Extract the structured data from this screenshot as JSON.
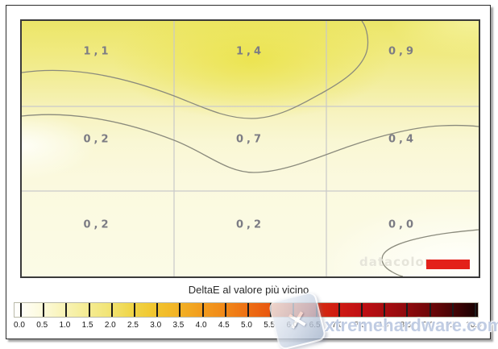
{
  "chart_data": {
    "type": "heatmap",
    "title": "DeltaE al valore più vicino",
    "rows": 3,
    "cols": 3,
    "values": [
      [
        1.1,
        1.4,
        0.9
      ],
      [
        0.2,
        0.7,
        0.4
      ],
      [
        0.2,
        0.2,
        0.0
      ]
    ],
    "cell_labels": [
      [
        "1,1",
        "1,4",
        "0,9"
      ],
      [
        "0,2",
        "0,7",
        "0,4"
      ],
      [
        "0,2",
        "0,2",
        "0,0"
      ]
    ],
    "grid": true,
    "legend_position": "bottom",
    "colorbar": {
      "min": 0.0,
      "max": 10.0,
      "step": 0.5,
      "ticks": [
        "0.0",
        "0.5",
        "1.0",
        "1.5",
        "2.0",
        "2.5",
        "3.0",
        "3.5",
        "4.0",
        "4.5",
        "5.0",
        "5.5",
        "6.0",
        "6.5",
        "7.0",
        "7.5",
        "8.0",
        "8.5",
        "9.0",
        "9.5",
        "10.0"
      ],
      "stops": [
        "#ffffff",
        "#fdfbe2",
        "#f9f4bc",
        "#f5ed98",
        "#f2e578",
        "#f0d64a",
        "#f1c62e",
        "#f2b426",
        "#f29e1e",
        "#f18a18",
        "#ee7113",
        "#e9580f",
        "#e0400c",
        "#d72d0f",
        "#cf1b12",
        "#bf0f12",
        "#a70d10",
        "#8d0a0d",
        "#6d0708",
        "#440405",
        "#150101"
      ]
    }
  },
  "watermarks": {
    "datacolor": "datacolor",
    "xtremehardware": "xtremehardware.com",
    "x_glyph": "✕"
  },
  "colors": {
    "contour_line": "#8b8b7d",
    "grid_line": "#c9c9c9",
    "value_label": "#7c7c84",
    "datacolor_red": "#e3211a",
    "watermark_blue": "#8ca2cc",
    "peak_yellow": "#ece668",
    "low_white": "#fbfbe6"
  }
}
